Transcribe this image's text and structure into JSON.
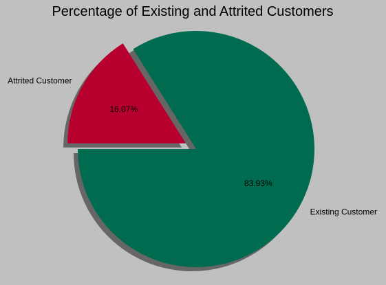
{
  "chart_data": {
    "type": "pie",
    "title": "Percentage of Existing and Attrited Customers",
    "slices": [
      {
        "label": "Existing Customer",
        "value": 83.93,
        "pct_label": "83.93%",
        "color": "#006b4f",
        "explode": false
      },
      {
        "label": "Attrited Customer",
        "value": 16.07,
        "pct_label": "16.07%",
        "color": "#b8002e",
        "explode": true
      }
    ],
    "start_angle_deg": 180,
    "direction": "counterclockwise",
    "shadow": true,
    "background": "#c0c0c0",
    "shadow_color": "#666666"
  }
}
